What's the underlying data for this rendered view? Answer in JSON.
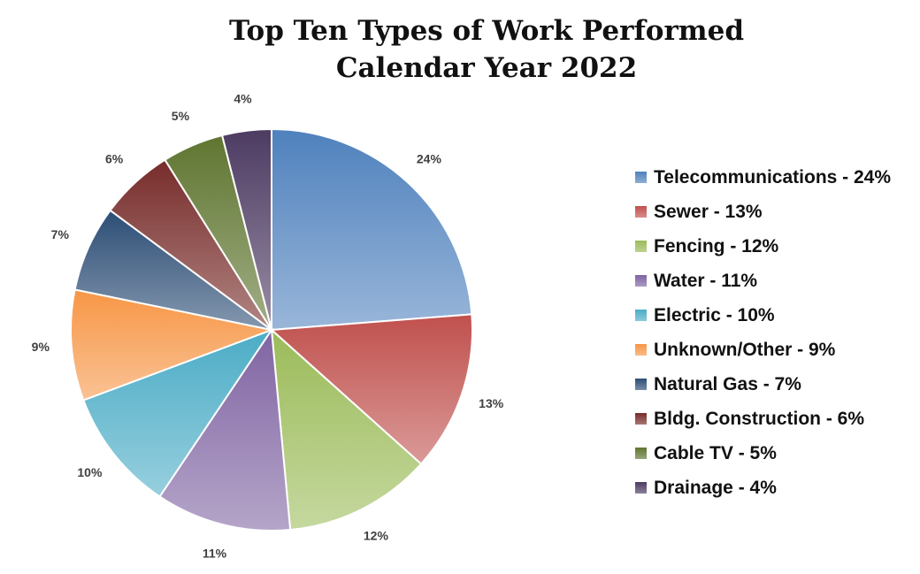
{
  "chart_data": {
    "type": "pie",
    "title_line1": "Top Ten Types of Work Performed",
    "title_line2": "Calendar Year 2022",
    "categories": [
      "Telecommunications",
      "Sewer",
      "Fencing",
      "Water",
      "Electric",
      "Unknown/Other",
      "Natural Gas",
      "Bldg. Construction",
      "Cable TV",
      "Drainage"
    ],
    "values": [
      24,
      13,
      12,
      11,
      10,
      9,
      7,
      6,
      5,
      4
    ],
    "data_labels": [
      "24%",
      "13%",
      "12%",
      "11%",
      "10%",
      "9%",
      "7%",
      "6%",
      "5%",
      "4%"
    ],
    "legend_entries": [
      "Telecommunications - 24%",
      "Sewer - 13%",
      "Fencing - 12%",
      "Water - 11%",
      "Electric - 10%",
      "Unknown/Other - 9%",
      "Natural Gas - 7%",
      "Bldg. Construction - 6%",
      "Cable TV - 5%",
      "Drainage - 4%"
    ],
    "colors": [
      "#4f81bd",
      "#c0504d",
      "#9bbb59",
      "#8064a2",
      "#4bacc6",
      "#f79646",
      "#2c4d75",
      "#772c2a",
      "#5f7530",
      "#4d3b62"
    ],
    "legend_position": "right",
    "start_angle": "12 o'clock",
    "direction": "clockwise"
  }
}
